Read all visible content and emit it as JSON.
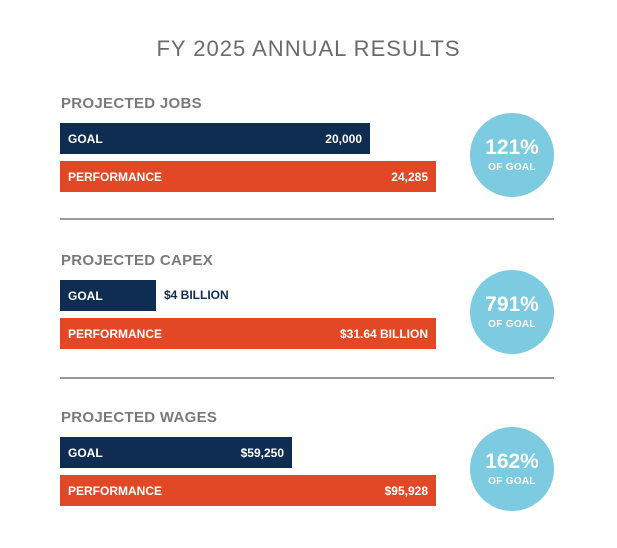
{
  "chart_data": {
    "type": "bar",
    "title": "FY 2025 ANNUAL RESULTS",
    "groups": [
      {
        "title": "PROJECTED JOBS",
        "goal": {
          "label": "GOAL",
          "value": 20000,
          "display": "20,000"
        },
        "performance": {
          "label": "PERFORMANCE",
          "value": 24285,
          "display": "24,285"
        },
        "percent": "121%",
        "percent_label": "OF GOAL"
      },
      {
        "title": "PROJECTED CAPEX",
        "goal": {
          "label": "GOAL",
          "value": 4,
          "display": "$4 BILLION"
        },
        "performance": {
          "label": "PERFORMANCE",
          "value": 31.64,
          "display": "$31.64 BILLION"
        },
        "percent": "791%",
        "percent_label": "OF GOAL"
      },
      {
        "title": "PROJECTED WAGES",
        "goal": {
          "label": "GOAL",
          "value": 59250,
          "display": "$59,250"
        },
        "performance": {
          "label": "PERFORMANCE",
          "value": 95928,
          "display": "$95,928"
        },
        "percent": "162%",
        "percent_label": "OF GOAL"
      }
    ],
    "colors": {
      "goal": "#0f2d52",
      "performance": "#e24826",
      "badge": "#7ccbe0",
      "section_title": "#7a7a7a"
    }
  }
}
